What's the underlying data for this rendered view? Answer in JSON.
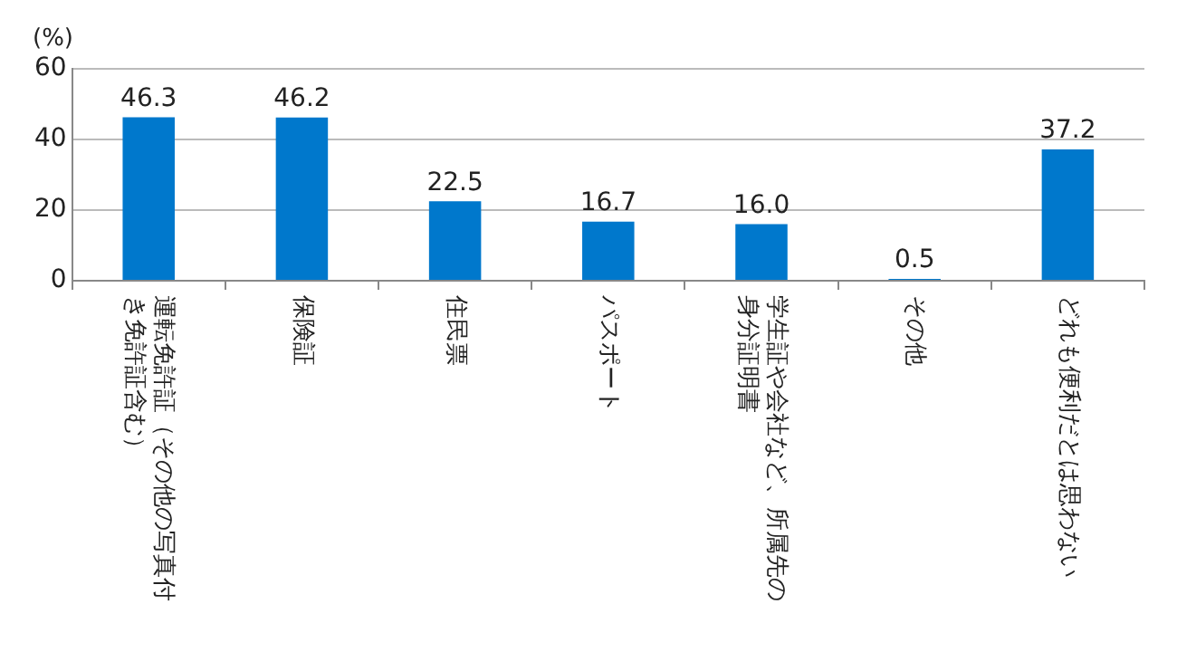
{
  "chart_data": {
    "type": "bar",
    "ylabel": "(%)",
    "categories": [
      "運転免許証（その他の写真付き免許証含む）",
      "保険証",
      "住民票",
      "パスポート",
      "学生証や会社など、所属先の身分証明書",
      "その他",
      "どれも便利だとは思わない"
    ],
    "values": [
      46.3,
      46.2,
      22.5,
      16.7,
      16.0,
      0.5,
      37.2
    ],
    "color": "#0078cc",
    "ylim": [
      0,
      60
    ],
    "yticks": [
      0,
      20,
      40,
      60
    ],
    "value_labels": [
      "46.3",
      "46.2",
      "22.5",
      "16.7",
      "16.0",
      "0.5",
      "37.2"
    ],
    "grid": "y",
    "legend": false
  }
}
